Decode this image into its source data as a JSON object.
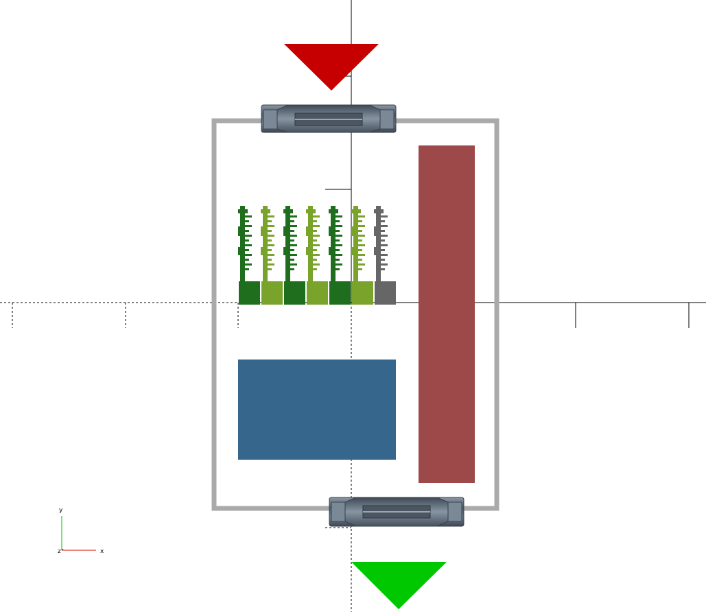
{
  "viewport": {
    "background": "#ffffff",
    "axis_color": "#000000"
  },
  "axes_gizmo": {
    "x_label": "x",
    "y_label": "y",
    "z_label": "z",
    "x_color": "#d40000",
    "y_color": "#00c000",
    "z_color": "#3a3a3a"
  },
  "scene": {
    "frame_color": "#aaaaaa",
    "top_arrow_color": "#c60000",
    "bottom_arrow_color": "#00c800",
    "connector_color": "#5d6b7a",
    "blue_block_color": "#36668c",
    "red_bar_color": "#9e4949",
    "header_colors": [
      "#1e6e1e",
      "#7aa32c",
      "#1e6e1e",
      "#7aa32c",
      "#1e6e1e",
      "#7aa32c",
      "#666666"
    ]
  }
}
